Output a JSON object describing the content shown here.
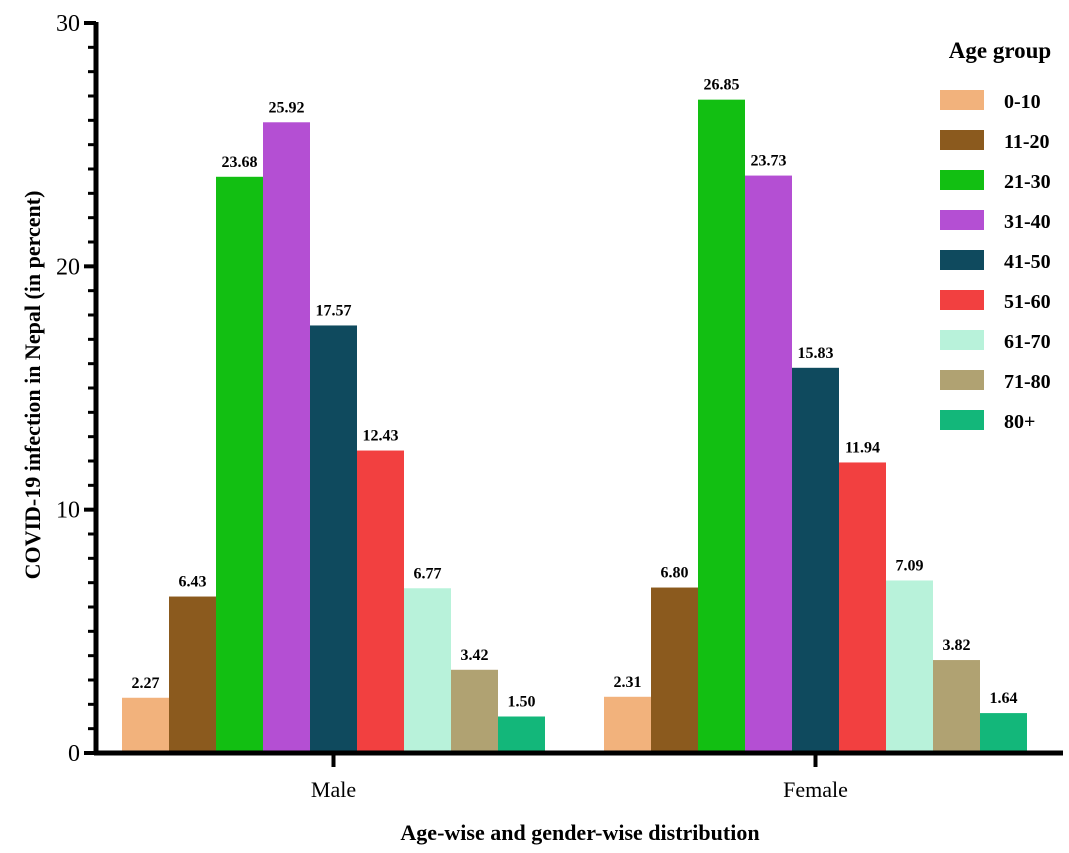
{
  "chart_data": {
    "type": "bar",
    "title": "",
    "xlabel": "Age-wise and gender-wise distribution",
    "ylabel": "COVID-19 infection in Nepal (in percent)",
    "ylim": [
      0,
      30
    ],
    "yticks": [
      "0",
      "10",
      "20",
      "30"
    ],
    "grid": false,
    "legend": {
      "title": "Age group",
      "placement": "top-right"
    },
    "categories": [
      "Male",
      "Female"
    ],
    "series": [
      {
        "name": "0-10",
        "color": "#F2B27C",
        "values": [
          2.27,
          2.31
        ],
        "labels": [
          "2.27",
          "2.31"
        ]
      },
      {
        "name": "11-20",
        "color": "#8B5A1E",
        "values": [
          6.43,
          6.8
        ],
        "labels": [
          "6.43",
          "6.80"
        ]
      },
      {
        "name": "21-30",
        "color": "#12BF12",
        "values": [
          23.68,
          26.85
        ],
        "labels": [
          "23.68",
          "26.85"
        ]
      },
      {
        "name": "31-40",
        "color": "#B44FD3",
        "values": [
          25.92,
          23.73
        ],
        "labels": [
          "25.92",
          "23.73"
        ]
      },
      {
        "name": "41-50",
        "color": "#0F4A5E",
        "values": [
          17.57,
          15.83
        ],
        "labels": [
          "17.57",
          "15.83"
        ]
      },
      {
        "name": "51-60",
        "color": "#F24040",
        "values": [
          12.43,
          11.94
        ],
        "labels": [
          "12.43",
          "11.94"
        ]
      },
      {
        "name": "61-70",
        "color": "#B8F2DA",
        "values": [
          6.77,
          7.09
        ],
        "labels": [
          "6.77",
          "7.09"
        ]
      },
      {
        "name": "71-80",
        "color": "#B0A272",
        "values": [
          3.42,
          3.82
        ],
        "labels": [
          "3.42",
          "3.82"
        ]
      },
      {
        "name": "80+",
        "color": "#13B77A",
        "values": [
          1.5,
          1.64
        ],
        "labels": [
          "1.50",
          "1.64"
        ]
      }
    ]
  }
}
